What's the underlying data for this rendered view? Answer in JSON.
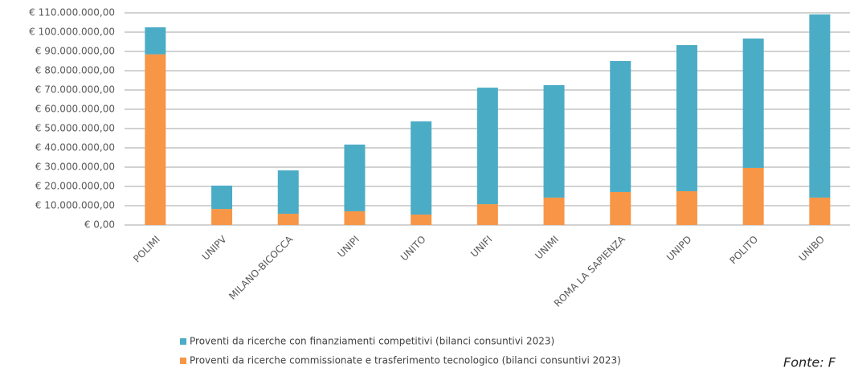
{
  "chart_data": {
    "type": "stacked_bar",
    "categories": [
      "POLIMI",
      "UNIPV",
      "MILANO-BICOCCA",
      "UNIPI",
      "UNITO",
      "UNIFI",
      "UNIMI",
      "ROMA LA SAPIENZA",
      "UNIPD",
      "POLITO",
      "UNIBO"
    ],
    "series": [
      {
        "name": "Proventi da ricerche commissionate e trasferimento tecnologico (bilanci consuntivi 2023)",
        "color": "#f79646",
        "values": [
          88500000,
          8300000,
          5800000,
          7100000,
          5400000,
          10800000,
          14200000,
          17100000,
          17500000,
          29600000,
          14200000
        ]
      },
      {
        "name": "Proventi da ricerche con finanziamenti competitivi (bilanci consuntivi 2023)",
        "color": "#4bacc6",
        "values": [
          14000000,
          12100000,
          22500000,
          34600000,
          48300000,
          60400000,
          58300000,
          67900000,
          75800000,
          67100000,
          95000000
        ]
      }
    ],
    "ylim": [
      0,
      110000000
    ],
    "yticks": [
      {
        "value": 0,
        "label": "€ 0,00"
      },
      {
        "value": 10000000,
        "label": "€ 10.000.000,00"
      },
      {
        "value": 20000000,
        "label": "€ 20.000.000,00"
      },
      {
        "value": 30000000,
        "label": "€ 30.000.000,00"
      },
      {
        "value": 40000000,
        "label": "€ 40.000.000,00"
      },
      {
        "value": 50000000,
        "label": "€ 50.000.000,00"
      },
      {
        "value": 60000000,
        "label": "€ 60.000.000,00"
      },
      {
        "value": 70000000,
        "label": "€ 70.000.000,00"
      },
      {
        "value": 80000000,
        "label": "€ 80.000.000,00"
      },
      {
        "value": 90000000,
        "label": "€ 90.000.000,00"
      },
      {
        "value": 100000000,
        "label": "€ 100.000.000,00"
      },
      {
        "value": 110000000,
        "label": "€ 110.000.000,00"
      }
    ],
    "grid": true,
    "source": "Fonte: F"
  }
}
